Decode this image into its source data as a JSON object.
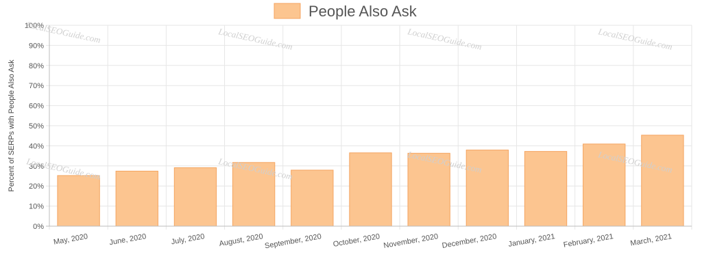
{
  "chart_data": {
    "type": "bar",
    "categories": [
      "May, 2020",
      "June, 2020",
      "July, 2020",
      "August, 2020",
      "September, 2020",
      "October, 2020",
      "November, 2020",
      "December, 2020",
      "January, 2021",
      "February, 2021",
      "March, 2021"
    ],
    "series": [
      {
        "name": "People Also Ask",
        "values": [
          25.2,
          27.4,
          29.1,
          31.7,
          27.9,
          36.5,
          36.3,
          37.9,
          37.2,
          40.9,
          45.3
        ]
      }
    ],
    "ylabel": "Percent of SERPs with People Also Ask",
    "xlabel": "",
    "ylim": [
      0,
      100
    ],
    "y_ticks": [
      "0%",
      "10%",
      "20%",
      "30%",
      "40%",
      "50%",
      "60%",
      "70%",
      "80%",
      "90%",
      "100%"
    ],
    "grid": true,
    "legend_position": "top-center",
    "bar_fill": "#fcc590",
    "bar_stroke": "#f4a460",
    "watermark": "LocalSEOGuide.com"
  }
}
